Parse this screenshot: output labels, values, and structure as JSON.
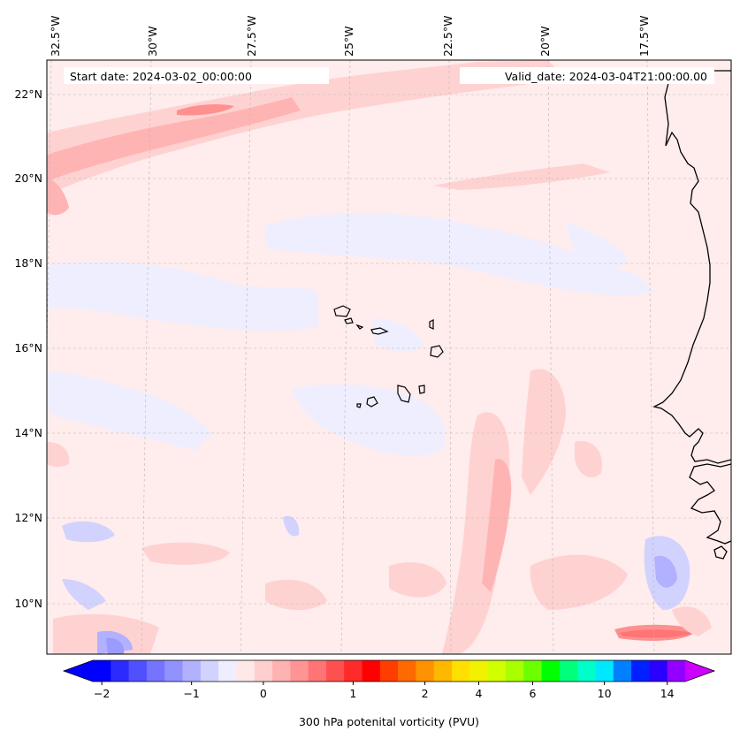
{
  "header": {
    "start_date": "Start date: 2024-03-02_00:00:00",
    "valid_date": "Valid_date: 2024-03-04T21:00:00.00"
  },
  "lon_labels": [
    "32.5°W",
    "30°W",
    "27.5°W",
    "25°W",
    "22.5°W",
    "20°W",
    "17.5°W"
  ],
  "lat_labels": [
    "22°N",
    "20°N",
    "18°N",
    "16°N",
    "14°N",
    "12°N",
    "10°N"
  ],
  "colorbar": {
    "title": "300 hPa potenital vorticity (PVU)",
    "ticks": [
      "−2",
      "−1",
      "0",
      "1",
      "2",
      "4",
      "6",
      "10",
      "14"
    ],
    "colors": [
      "#0000ff",
      "#2b2bff",
      "#5050ff",
      "#7474ff",
      "#9292ff",
      "#b1b1ff",
      "#d2d2ff",
      "#eeeeff",
      "#ffe8e8",
      "#ffcfcf",
      "#ffb2b2",
      "#ff9494",
      "#ff7474",
      "#ff5050",
      "#ff2a2a",
      "#ff0000",
      "#ff3d00",
      "#ff6a00",
      "#ff9200",
      "#ffb800",
      "#ffe000",
      "#f2f200",
      "#d2ff00",
      "#a8ff00",
      "#6cff00",
      "#00ff00",
      "#00ff7a",
      "#00ffc8",
      "#00e8ff",
      "#0080ff",
      "#0020ff",
      "#2a00ff",
      "#9200ff"
    ],
    "under_color": "#0000ff",
    "over_color": "#cc00ff"
  },
  "legend_colors": {
    "background": "#fff0f0",
    "band_light": "#ffd2d2",
    "band_mid": "#ffb4b4",
    "band_dark": "#ff9090",
    "blue_light": "#eeeeff",
    "blue_mid": "#d2d2ff",
    "blue_dark": "#9a9aff",
    "coast": "#000000"
  }
}
